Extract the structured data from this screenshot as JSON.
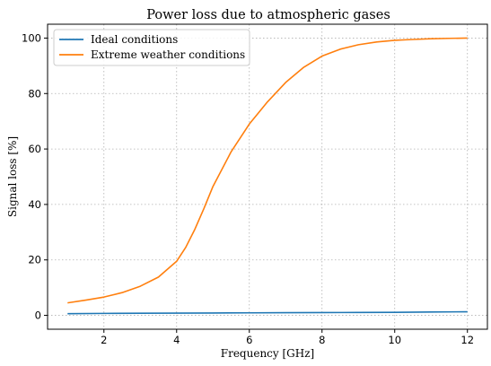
{
  "chart_data": {
    "type": "line",
    "title": "Power loss due to atmospheric gases",
    "xlabel": "Frequency [GHz]",
    "ylabel": "Signal loss [%]",
    "xlim": [
      0.45,
      12.55
    ],
    "ylim": [
      -5,
      105
    ],
    "xticks": [
      2,
      4,
      6,
      8,
      10,
      12
    ],
    "yticks": [
      0,
      20,
      40,
      60,
      80,
      100
    ],
    "grid": true,
    "legend_position": "top-left",
    "series": [
      {
        "name": "Ideal conditions",
        "color": "#1f77b4",
        "x": [
          1,
          2,
          3,
          4,
          5,
          6,
          7,
          8,
          9,
          10,
          11,
          12
        ],
        "y": [
          0.6,
          0.7,
          0.75,
          0.8,
          0.85,
          0.9,
          0.95,
          1.0,
          1.05,
          1.1,
          1.2,
          1.3
        ]
      },
      {
        "name": "Extreme weather conditions",
        "color": "#ff7f0e",
        "x": [
          1,
          1.5,
          2,
          2.5,
          3,
          3.5,
          4,
          4.25,
          4.5,
          4.75,
          5,
          5.5,
          6,
          6.5,
          7,
          7.5,
          8,
          8.5,
          9,
          9.5,
          10,
          10.5,
          11,
          11.5,
          12
        ],
        "y": [
          4.5,
          5.5,
          6.6,
          8.2,
          10.5,
          13.8,
          19.5,
          24.5,
          31.0,
          38.5,
          46.5,
          59.0,
          69.0,
          77.0,
          84.0,
          89.5,
          93.5,
          96.0,
          97.6,
          98.6,
          99.2,
          99.5,
          99.75,
          99.9,
          100.0
        ]
      }
    ]
  }
}
